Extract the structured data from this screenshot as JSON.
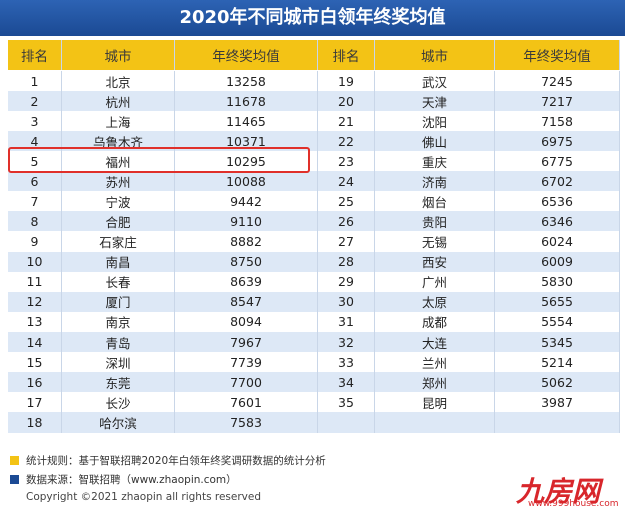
{
  "title": "2020年不同城市白领年终奖均值",
  "table": {
    "header": [
      "排名",
      "城市",
      "年终奖均值",
      "排名",
      "城市",
      "年终奖均值"
    ],
    "left_rows": [
      [
        1,
        "北京",
        13258
      ],
      [
        2,
        "杭州",
        11678
      ],
      [
        3,
        "上海",
        11465
      ],
      [
        4,
        "乌鲁木齐",
        10371
      ],
      [
        5,
        "福州",
        10295
      ],
      [
        6,
        "苏州",
        10088
      ],
      [
        7,
        "宁波",
        9442
      ],
      [
        8,
        "合肥",
        9110
      ],
      [
        9,
        "石家庄",
        8882
      ],
      [
        10,
        "南昌",
        8750
      ],
      [
        11,
        "长春",
        8639
      ],
      [
        12,
        "厦门",
        8547
      ],
      [
        13,
        "南京",
        8094
      ],
      [
        14,
        "青岛",
        7967
      ],
      [
        15,
        "深圳",
        7739
      ],
      [
        16,
        "东莞",
        7700
      ],
      [
        17,
        "长沙",
        7601
      ],
      [
        18,
        "哈尔滨",
        7583
      ]
    ],
    "right_rows": [
      [
        19,
        "武汉",
        7245
      ],
      [
        20,
        "天津",
        7217
      ],
      [
        21,
        "沈阳",
        7158
      ],
      [
        22,
        "佛山",
        6975
      ],
      [
        23,
        "重庆",
        6775
      ],
      [
        24,
        "济南",
        6702
      ],
      [
        25,
        "烟台",
        6536
      ],
      [
        26,
        "贵阳",
        6346
      ],
      [
        27,
        "无锡",
        6024
      ],
      [
        28,
        "西安",
        6009
      ],
      [
        29,
        "广州",
        5830
      ],
      [
        30,
        "太原",
        5655
      ],
      [
        31,
        "成都",
        5554
      ],
      [
        32,
        "大连",
        5345
      ],
      [
        33,
        "兰州",
        5214
      ],
      [
        34,
        "郑州",
        5062
      ],
      [
        35,
        "昆明",
        3987
      ]
    ]
  },
  "notes": [
    "统计规则：基于智联招聘2020年白领年终奖调研数据的统计分析",
    "数据来源：智联招聘（www.zhaopin.com）"
  ],
  "copyright": "Copyright ©2021 zhaopin all rights reserved",
  "watermark": {
    "brand": "九房网",
    "url": "www.999house.com"
  }
}
